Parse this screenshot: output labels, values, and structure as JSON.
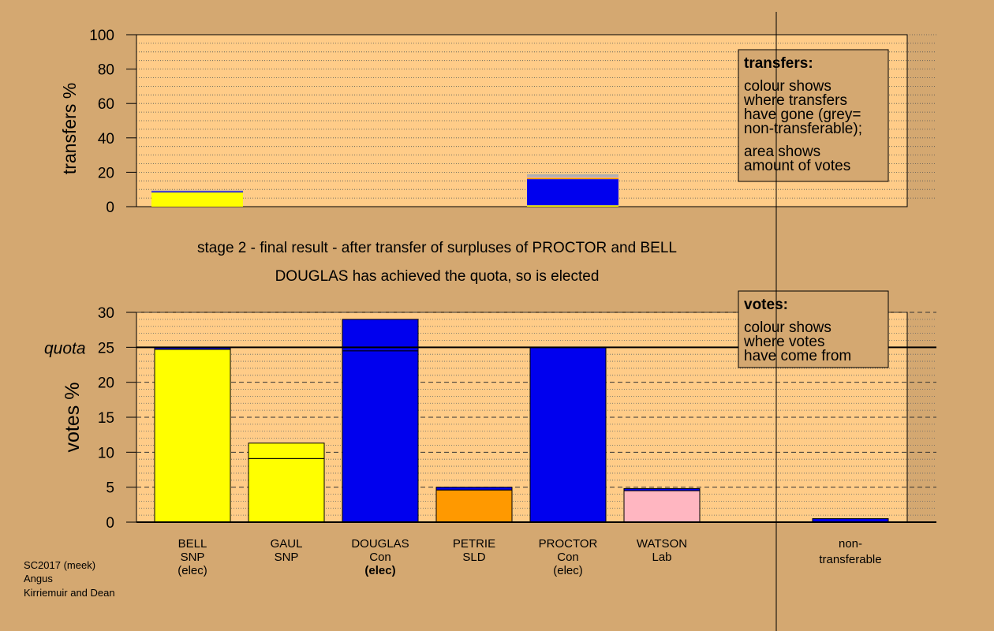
{
  "colors": {
    "background": "#d4a871",
    "plot_bg": "#ffcc88",
    "snp": "#ffff00",
    "con": "#0000ee",
    "sld": "#ff9900",
    "lab": "#ffb6c1",
    "grey": "#b0b0b0"
  },
  "caption": {
    "line1": "stage 2 - final result - after transfer of surpluses of PROCTOR and BELL",
    "line2": "DOUGLAS has achieved the quota, so is elected"
  },
  "footer": {
    "line1": "SC2017 (meek)",
    "line2": "Angus",
    "line3": "Kirriemuir and Dean"
  },
  "transfers_legend": {
    "title": "transfers:",
    "lines": [
      "colour shows",
      "where transfers",
      "have gone (grey=",
      "non-transferable);"
    ],
    "lines2": [
      "area shows",
      "amount of votes"
    ]
  },
  "votes_legend": {
    "title": "votes:",
    "lines": [
      "colour shows",
      "where votes",
      "have come from"
    ]
  },
  "candidates": [
    {
      "name": "BELL",
      "party": "SNP",
      "status": "(elec)",
      "status_bold": false
    },
    {
      "name": "GAUL",
      "party": "SNP",
      "status": "",
      "status_bold": false
    },
    {
      "name": "DOUGLAS",
      "party": "Con",
      "status": "(elec)",
      "status_bold": true
    },
    {
      "name": "PETRIE",
      "party": "SLD",
      "status": "",
      "status_bold": false
    },
    {
      "name": "PROCTOR",
      "party": "Con",
      "status": "(elec)",
      "status_bold": false
    },
    {
      "name": "WATSON",
      "party": "Lab",
      "status": "",
      "status_bold": false
    }
  ],
  "nontransferable_label": [
    "non-",
    "transferable"
  ],
  "chart_data": [
    {
      "type": "bar",
      "ylabel": "transfers %",
      "ylim": [
        0,
        100
      ],
      "yticks": [
        0,
        20,
        40,
        60,
        80,
        100
      ],
      "bars": [
        {
          "slot": 0,
          "segments": [
            {
              "from": 0,
              "to": 8.3,
              "color": "snp"
            },
            {
              "from": 8.3,
              "to": 9.0,
              "color": "con"
            },
            {
              "from": 9.0,
              "to": 9.4,
              "color": "grey"
            }
          ]
        },
        {
          "slot": 4,
          "segments": [
            {
              "from": 0,
              "to": 0.8,
              "color": "snp"
            },
            {
              "from": 0.8,
              "to": 16.0,
              "color": "con"
            },
            {
              "from": 16.0,
              "to": 16.8,
              "color": "sld"
            },
            {
              "from": 16.8,
              "to": 17.2,
              "color": "lab"
            },
            {
              "from": 17.2,
              "to": 18.8,
              "color": "grey"
            }
          ]
        }
      ]
    },
    {
      "type": "bar",
      "ylabel": "votes %",
      "ylim": [
        0,
        30
      ],
      "yticks": [
        0,
        5,
        10,
        15,
        20,
        25,
        30
      ],
      "quota": 25,
      "quota_label": "quota",
      "categories": [
        "BELL SNP (elec)",
        "GAUL SNP",
        "DOUGLAS Con (elec)",
        "PETRIE SLD",
        "PROCTOR Con (elec)",
        "WATSON Lab",
        "non-transferable"
      ],
      "bars": [
        {
          "slot": 0,
          "total": 25.0,
          "segments": [
            {
              "from": 0,
              "to": 24.7,
              "color": "snp"
            },
            {
              "from": 24.7,
              "to": 25.0,
              "color": "con"
            }
          ]
        },
        {
          "slot": 1,
          "total": 11.3,
          "segments": [
            {
              "from": 0,
              "to": 9.1,
              "color": "snp"
            },
            {
              "from": 9.1,
              "to": 11.3,
              "color": "snp"
            }
          ]
        },
        {
          "slot": 2,
          "total": 29.0,
          "segments": [
            {
              "from": 0,
              "to": 24.5,
              "color": "con"
            },
            {
              "from": 24.5,
              "to": 29.0,
              "color": "con"
            }
          ]
        },
        {
          "slot": 3,
          "total": 5.0,
          "segments": [
            {
              "from": 0,
              "to": 4.6,
              "color": "sld"
            },
            {
              "from": 4.6,
              "to": 5.0,
              "color": "con"
            }
          ]
        },
        {
          "slot": 4,
          "total": 25.0,
          "segments": [
            {
              "from": 0,
              "to": 25.0,
              "color": "con"
            }
          ]
        },
        {
          "slot": 5,
          "total": 4.8,
          "segments": [
            {
              "from": 0,
              "to": 4.5,
              "color": "lab"
            },
            {
              "from": 4.5,
              "to": 4.8,
              "color": "con"
            }
          ]
        },
        {
          "slot": 7,
          "total": 0.5,
          "segments": [
            {
              "from": 0,
              "to": 0.5,
              "color": "con"
            }
          ]
        }
      ]
    }
  ]
}
